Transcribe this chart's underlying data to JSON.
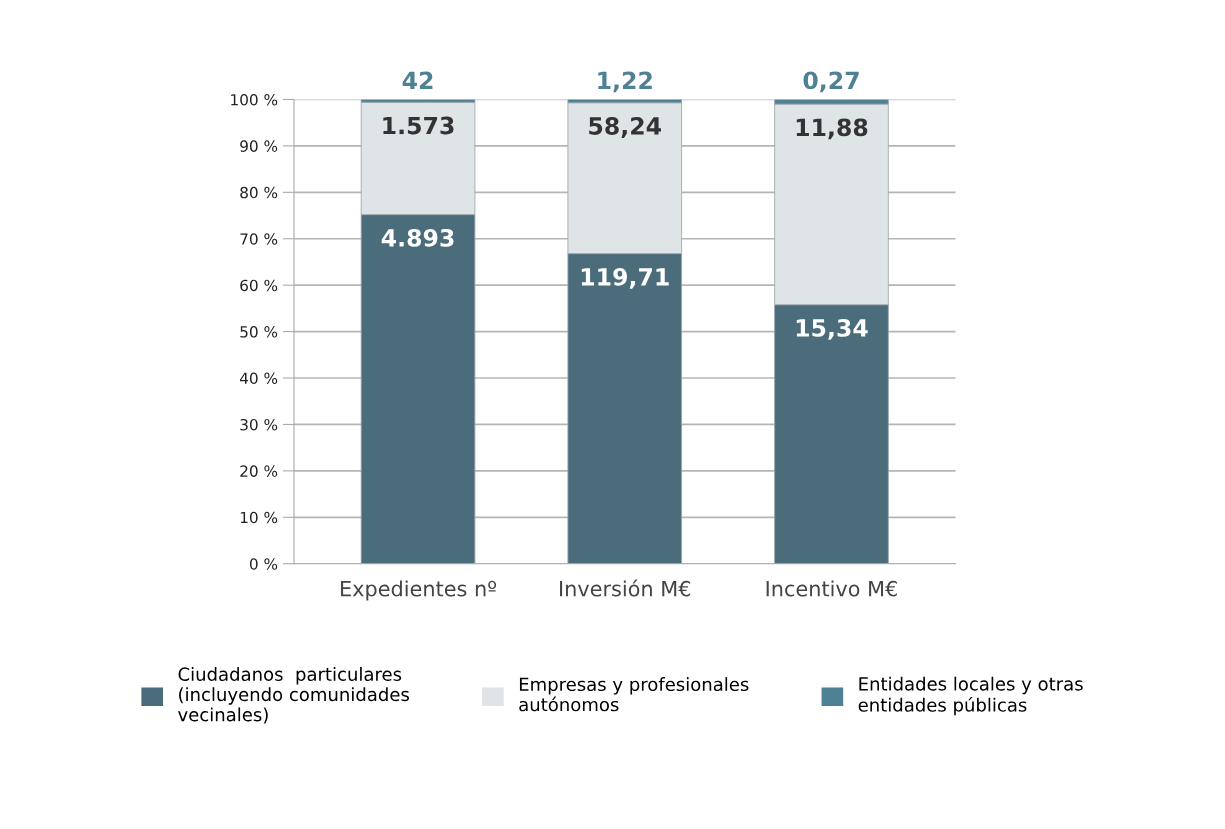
{
  "chart_data": {
    "type": "bar",
    "stacked": true,
    "categories": [
      "Expedientes nº",
      "Inversión M€",
      "Incentivo M€"
    ],
    "series": [
      {
        "name": "Ciudadanos  particulares\n(incluyendo comunidades\nvecinales)",
        "color": "#4b6c7b",
        "values": [
          75.2,
          66.8,
          55.8
        ]
      },
      {
        "name": "Empresas y profesionales\nautónomos",
        "color": "#dfe4e7",
        "values": [
          24.2,
          32.5,
          43.2
        ]
      },
      {
        "name": "Entidades locales y otras\nentidades públicas",
        "color": "#4f8194",
        "values": [
          0.6,
          0.7,
          1.0
        ]
      }
    ],
    "annotations": [
      {
        "text": "4.893",
        "x": "Expedientes nº",
        "y": 75.2
      },
      {
        "text": "119,71",
        "x": "Inversión M€",
        "y": 66.8
      },
      {
        "text": "15,34",
        "x": "Incentivo M€",
        "y": 55.8
      },
      {
        "text": "1.573",
        "x": "Expedientes nº",
        "y": 99.4
      },
      {
        "text": "58,24",
        "x": "Inversión M€",
        "y": 99.3
      },
      {
        "text": "11,88",
        "x": "Incentivo M€",
        "y": 99.0
      },
      {
        "text": "42",
        "x": "Expedientes nº",
        "y": 100
      },
      {
        "text": "1,22",
        "x": "Inversión M€",
        "y": 100
      },
      {
        "text": "0,27",
        "x": "Incentivo M€",
        "y": 100
      }
    ],
    "ylim": [
      0,
      100
    ],
    "yticks": [
      {
        "value": 0,
        "label": "0 %"
      },
      {
        "value": 10,
        "label": "10 %"
      },
      {
        "value": 20,
        "label": "20 %"
      },
      {
        "value": 30,
        "label": "30 %"
      },
      {
        "value": 40,
        "label": "40 %"
      },
      {
        "value": 50,
        "label": "50 %"
      },
      {
        "value": 60,
        "label": "60 %"
      },
      {
        "value": 70,
        "label": "70 %"
      },
      {
        "value": 80,
        "label": "80 %"
      },
      {
        "value": 90,
        "label": "90 %"
      },
      {
        "value": 100,
        "label": "100 %"
      }
    ],
    "grid": "y",
    "legend": "bottom"
  }
}
